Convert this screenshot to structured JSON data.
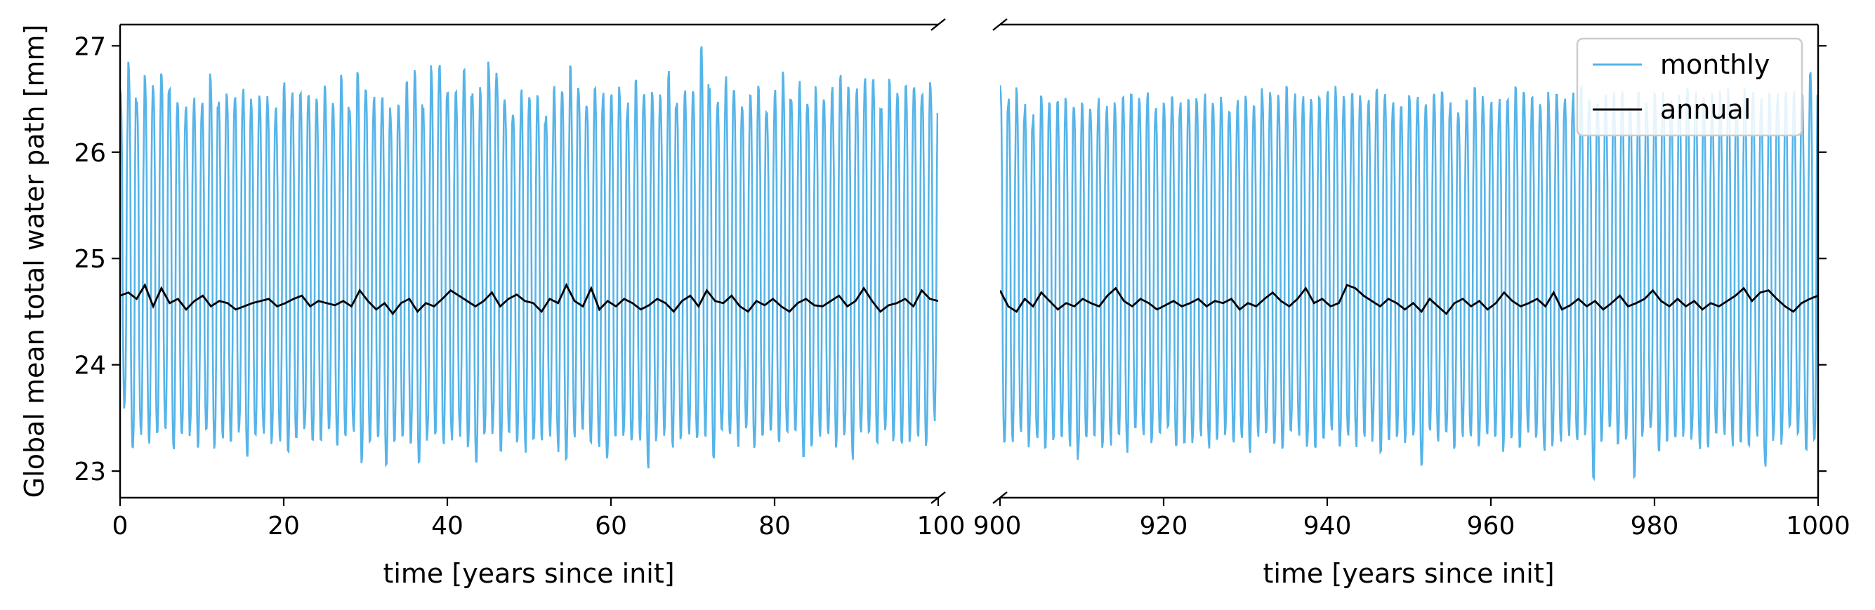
{
  "chart_data": {
    "type": "line",
    "ylabel": "Global mean total water path [mm]",
    "ylim": [
      22.75,
      27.2
    ],
    "yticks": [
      23,
      24,
      25,
      26,
      27
    ],
    "panels": [
      {
        "xlabel": "time [years since init]",
        "xlim": [
          0,
          100
        ],
        "xticks": [
          0,
          20,
          40,
          60,
          80,
          100
        ],
        "y_axis_side": "left"
      },
      {
        "xlabel": "time [years since init]",
        "xlim": [
          900,
          1000
        ],
        "xticks": [
          900,
          920,
          940,
          960,
          980,
          1000
        ],
        "y_axis_side": "right"
      }
    ],
    "legend": {
      "position": "top-right"
    },
    "series": [
      {
        "name": "monthly",
        "color": "#56b4e9",
        "sampling": "monthly",
        "description_seasonal_cycle": {
          "mean": 24.6,
          "typical_max": 26.55,
          "typical_min": 23.3,
          "period_years": 1
        },
        "yearly_peaks_panel1": [
          26.6,
          26.85,
          26.5,
          26.7,
          26.65,
          26.8,
          26.6,
          26.45,
          26.45,
          26.5,
          26.45,
          26.75,
          26.5,
          26.6,
          26.55,
          26.6,
          26.5,
          26.55,
          26.5,
          26.4,
          26.65,
          26.55,
          26.6,
          26.55,
          26.5,
          26.6,
          26.45,
          26.7,
          26.45,
          26.8,
          26.6,
          26.5,
          26.55,
          26.4,
          26.5,
          26.65,
          26.75,
          26.45,
          26.8,
          26.8,
          26.55,
          26.6,
          26.85,
          26.55,
          26.6,
          26.85,
          26.75,
          26.5,
          26.4,
          26.6,
          26.5,
          26.55,
          26.35,
          26.65,
          26.55,
          26.8,
          26.6,
          26.5,
          26.6,
          26.55,
          26.55,
          26.6,
          26.45,
          26.7,
          26.55,
          26.6,
          26.55,
          26.75,
          26.5,
          26.6,
          26.55,
          27.0,
          26.6,
          26.5,
          26.7,
          26.55,
          26.45,
          26.55,
          26.6,
          26.45,
          26.6,
          26.75,
          26.5,
          26.65,
          26.45,
          26.6,
          26.5,
          26.6,
          26.7,
          26.65,
          26.6,
          26.7,
          26.7,
          26.45,
          26.7,
          26.55,
          26.7,
          26.65,
          26.6,
          26.65
        ],
        "yearly_troughs_panel1": [
          23.6,
          23.15,
          23.35,
          23.25,
          23.35,
          23.4,
          23.2,
          23.3,
          23.35,
          23.25,
          23.35,
          23.2,
          23.3,
          23.3,
          23.35,
          23.1,
          23.3,
          23.35,
          23.25,
          23.3,
          23.2,
          23.25,
          23.35,
          23.25,
          23.3,
          23.35,
          23.2,
          23.3,
          23.35,
          23.05,
          23.3,
          23.35,
          23.05,
          23.3,
          23.3,
          23.25,
          23.0,
          23.3,
          23.35,
          23.25,
          23.3,
          23.35,
          23.2,
          23.05,
          23.3,
          23.35,
          23.2,
          23.35,
          23.3,
          23.2,
          23.25,
          23.3,
          23.35,
          23.2,
          23.1,
          23.3,
          23.35,
          23.2,
          23.25,
          23.1,
          23.3,
          23.35,
          23.25,
          23.3,
          23.05,
          23.3,
          23.35,
          23.2,
          23.3,
          23.35,
          23.25,
          23.3,
          23.1,
          23.35,
          23.3,
          23.25,
          23.35,
          23.2,
          23.3,
          23.35,
          23.25,
          23.3,
          23.35,
          23.1,
          23.25,
          23.3,
          23.35,
          23.25,
          23.3,
          23.1,
          23.35,
          23.3,
          23.25,
          23.35,
          23.3,
          23.2,
          23.3,
          23.35,
          23.25,
          23.5
        ],
        "yearly_peaks_panel2": [
          26.65,
          26.5,
          26.6,
          26.45,
          26.35,
          26.6,
          26.5,
          26.45,
          26.5,
          26.4,
          26.5,
          26.45,
          26.5,
          26.45,
          26.5,
          26.5,
          26.55,
          26.5,
          26.55,
          26.45,
          26.5,
          26.55,
          26.45,
          26.55,
          26.5,
          26.55,
          26.5,
          26.5,
          26.45,
          26.5,
          26.55,
          26.5,
          26.6,
          26.55,
          26.55,
          26.6,
          26.55,
          26.5,
          26.55,
          26.55,
          26.55,
          26.6,
          26.5,
          26.55,
          26.55,
          26.5,
          26.6,
          26.55,
          26.5,
          26.4,
          26.55,
          26.5,
          26.45,
          26.6,
          26.55,
          26.5,
          26.4,
          26.5,
          26.6,
          26.5,
          26.45,
          26.5,
          26.55,
          26.6,
          26.55,
          26.5,
          26.45,
          26.55,
          26.6,
          26.5,
          26.55,
          26.6,
          26.55,
          26.5,
          26.55,
          26.55,
          26.6,
          26.5,
          26.55,
          26.45,
          26.6,
          26.55,
          26.5,
          26.55,
          26.6,
          26.55,
          26.5,
          26.55,
          26.55,
          26.6,
          26.5,
          26.6,
          26.55,
          26.5,
          26.6,
          26.55,
          26.55,
          26.6,
          26.55,
          26.8
        ],
        "yearly_troughs_panel2": [
          23.2,
          23.3,
          23.35,
          23.25,
          23.3,
          23.2,
          23.3,
          23.35,
          23.25,
          23.1,
          23.3,
          23.35,
          23.2,
          23.25,
          23.3,
          23.2,
          23.35,
          23.3,
          23.25,
          23.3,
          23.35,
          23.2,
          23.3,
          23.25,
          23.35,
          23.2,
          23.3,
          23.35,
          23.25,
          23.3,
          23.2,
          23.35,
          23.3,
          23.25,
          23.15,
          23.3,
          23.35,
          23.2,
          23.25,
          23.3,
          23.35,
          23.2,
          23.3,
          23.25,
          23.35,
          23.3,
          23.2,
          23.3,
          23.35,
          23.25,
          23.3,
          23.0,
          23.35,
          23.25,
          23.3,
          23.2,
          23.35,
          23.3,
          23.25,
          23.3,
          23.35,
          23.2,
          23.3,
          23.25,
          23.35,
          23.3,
          23.2,
          23.25,
          23.3,
          23.35,
          23.25,
          23.3,
          22.95,
          23.3,
          23.35,
          23.2,
          23.25,
          22.9,
          23.3,
          23.35,
          23.2,
          23.3,
          23.25,
          23.35,
          23.3,
          23.2,
          23.25,
          23.3,
          23.35,
          23.25,
          23.3,
          23.2,
          23.35,
          23.0,
          23.3,
          23.25,
          23.35,
          23.3,
          23.2,
          23.25
        ]
      },
      {
        "name": "annual",
        "color": "#000000",
        "sampling": "annual running mean",
        "values_panel1": [
          24.65,
          24.68,
          24.62,
          24.75,
          24.55,
          24.72,
          24.58,
          24.62,
          24.52,
          24.6,
          24.65,
          24.55,
          24.6,
          24.58,
          24.52,
          24.55,
          24.58,
          24.6,
          24.62,
          24.55,
          24.58,
          24.62,
          24.65,
          24.55,
          24.6,
          24.58,
          24.56,
          24.6,
          24.55,
          24.7,
          24.6,
          24.52,
          24.58,
          24.48,
          24.58,
          24.62,
          24.5,
          24.58,
          24.55,
          24.62,
          24.7,
          24.65,
          24.6,
          24.55,
          24.6,
          24.68,
          24.55,
          24.62,
          24.66,
          24.6,
          24.58,
          24.5,
          24.62,
          24.58,
          24.75,
          24.6,
          24.55,
          24.72,
          24.52,
          24.6,
          24.55,
          24.62,
          24.58,
          24.52,
          24.56,
          24.62,
          24.58,
          24.5,
          24.6,
          24.65,
          24.55,
          24.7,
          24.6,
          24.58,
          24.65,
          24.55,
          24.5,
          24.6,
          24.56,
          24.62,
          24.55,
          24.5,
          24.58,
          24.62,
          24.56,
          24.55,
          24.6,
          24.65,
          24.55,
          24.6,
          24.72,
          24.6,
          24.5,
          24.56,
          24.58,
          24.62,
          24.55,
          24.7,
          24.62,
          24.6
        ],
        "values_panel2": [
          24.7,
          24.55,
          24.5,
          24.62,
          24.55,
          24.68,
          24.6,
          24.52,
          24.58,
          24.55,
          24.62,
          24.58,
          24.55,
          24.65,
          24.72,
          24.6,
          24.55,
          24.62,
          24.58,
          24.52,
          24.56,
          24.6,
          24.55,
          24.58,
          24.62,
          24.55,
          24.6,
          24.58,
          24.62,
          24.52,
          24.58,
          24.55,
          24.62,
          24.68,
          24.6,
          24.55,
          24.62,
          24.72,
          24.58,
          24.62,
          24.55,
          24.58,
          24.75,
          24.72,
          24.65,
          24.6,
          24.55,
          24.62,
          24.58,
          24.52,
          24.58,
          24.5,
          24.62,
          24.55,
          24.48,
          24.58,
          24.62,
          24.55,
          24.6,
          24.52,
          24.58,
          24.68,
          24.6,
          24.55,
          24.58,
          24.62,
          24.55,
          24.68,
          24.52,
          24.56,
          24.62,
          24.55,
          24.6,
          24.52,
          24.58,
          24.65,
          24.55,
          24.58,
          24.62,
          24.7,
          24.6,
          24.55,
          24.62,
          24.55,
          24.6,
          24.52,
          24.58,
          24.55,
          24.6,
          24.65,
          24.72,
          24.6,
          24.68,
          24.7,
          24.62,
          24.55,
          24.5,
          24.58,
          24.62,
          24.65
        ]
      }
    ]
  }
}
